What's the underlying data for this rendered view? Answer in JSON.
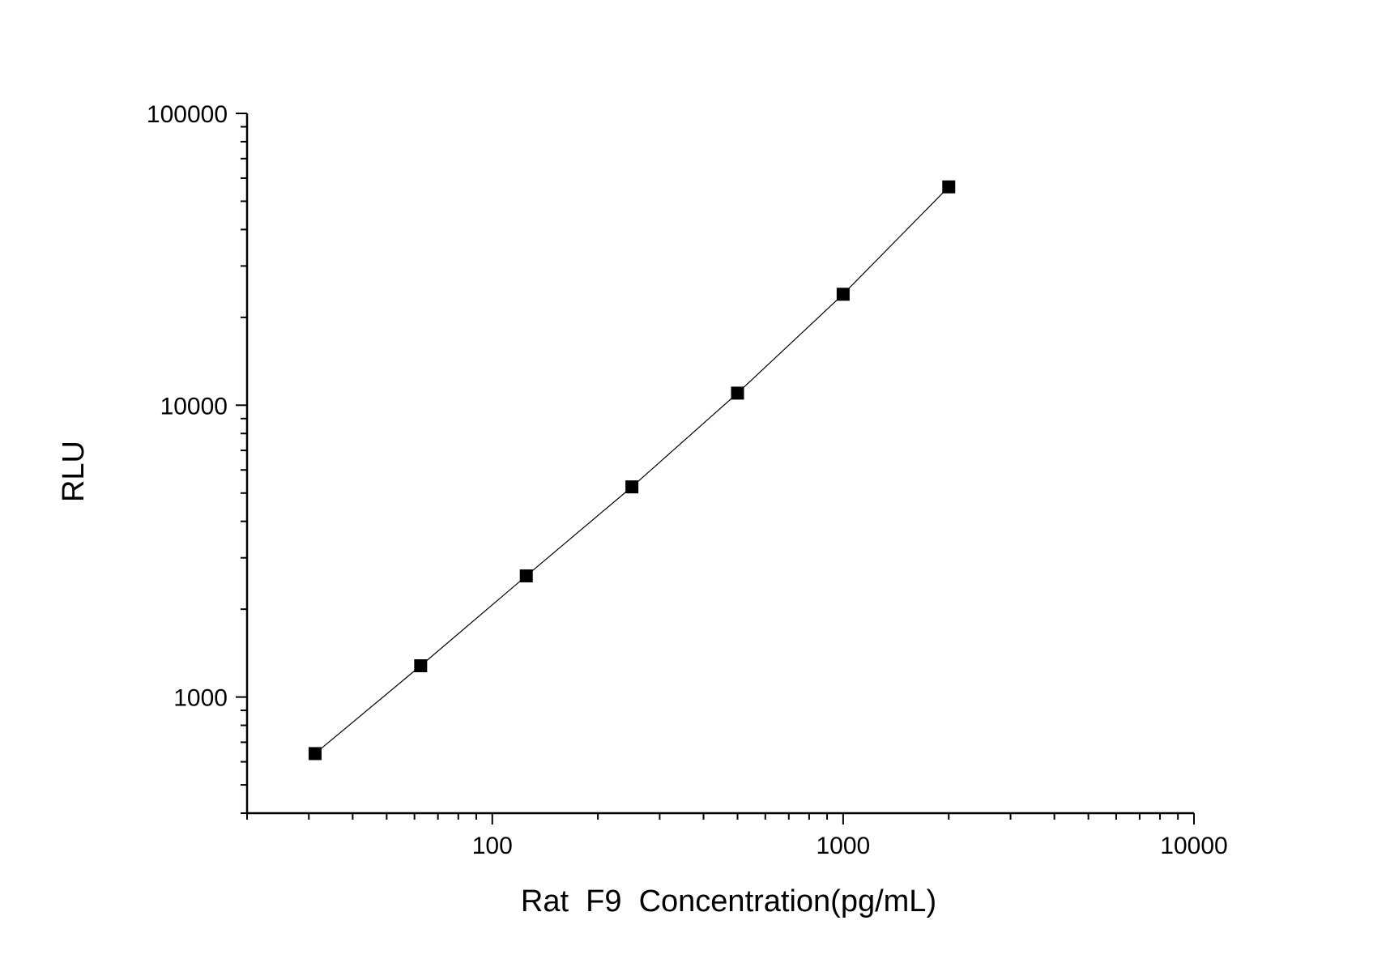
{
  "chart_data": {
    "type": "scatter",
    "title": "",
    "xlabel": "Rat  F9  Concentration(pg/mL)",
    "ylabel": "RLU",
    "x_scale": "log",
    "y_scale": "log",
    "xlim": [
      20,
      10000
    ],
    "ylim": [
      400,
      100000
    ],
    "x_ticks": [
      {
        "value": 100,
        "label": "100"
      },
      {
        "value": 1000,
        "label": "1000"
      },
      {
        "value": 10000,
        "label": "10000"
      }
    ],
    "y_ticks": [
      {
        "value": 1000,
        "label": "1000"
      },
      {
        "value": 10000,
        "label": "10000"
      },
      {
        "value": 100000,
        "label": "100000"
      }
    ],
    "grid": false,
    "series": [
      {
        "x": [
          31.25,
          62.5,
          125,
          250,
          500,
          1000,
          2000
        ],
        "y": [
          640,
          1280,
          2600,
          5250,
          11000,
          24000,
          56000
        ],
        "marker": "square",
        "line": true,
        "color": "#000000"
      }
    ]
  }
}
